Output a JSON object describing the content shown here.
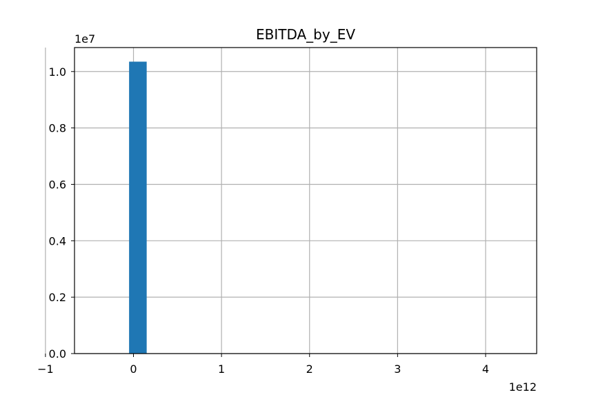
{
  "chart_data": {
    "type": "bar",
    "title": "EBITDA_by_EV",
    "xlabel": "",
    "ylabel": "",
    "x_offset_label": "1e12",
    "y_offset_label": "1e7",
    "xlim": [
      -0.67,
      4.58
    ],
    "ylim": [
      0,
      1.085
    ],
    "x_ticks": [
      {
        "value": -1,
        "label": "−1"
      },
      {
        "value": 0,
        "label": "0"
      },
      {
        "value": 1,
        "label": "1"
      },
      {
        "value": 2,
        "label": "2"
      },
      {
        "value": 3,
        "label": "3"
      },
      {
        "value": 4,
        "label": "4"
      }
    ],
    "y_ticks": [
      {
        "value": 0.0,
        "label": "0.0"
      },
      {
        "value": 0.2,
        "label": "0.2"
      },
      {
        "value": 0.4,
        "label": "0.4"
      },
      {
        "value": 0.6,
        "label": "0.6"
      },
      {
        "value": 0.8,
        "label": "0.8"
      },
      {
        "value": 1.0,
        "label": "1.0"
      }
    ],
    "bars": [
      {
        "x_start": -0.05,
        "x_end": 0.15,
        "value": 1.035
      }
    ],
    "grid": true,
    "colors": {
      "bar": "#1f77b4",
      "grid": "#b0b0b0",
      "axes": "#000000"
    }
  }
}
